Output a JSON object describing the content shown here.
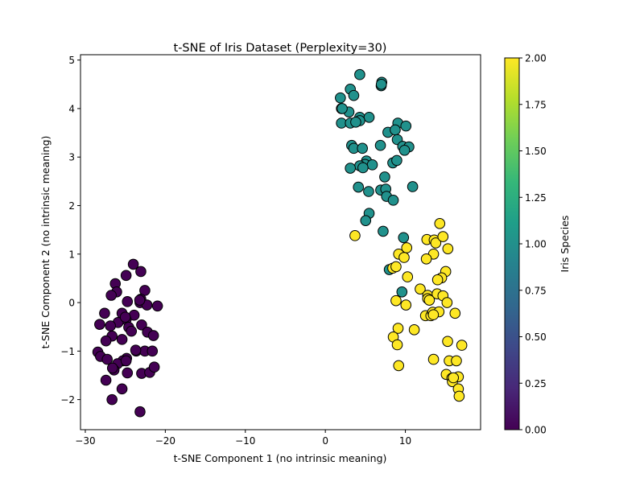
{
  "chart_data": {
    "type": "scatter",
    "title": "t-SNE of Iris Dataset (Perplexity=30)",
    "xlabel": "t-SNE Component 1 (no intrinsic meaning)",
    "ylabel": "t-SNE Component 2 (no intrinsic meaning)",
    "xlim": [
      -30.6,
      19.4
    ],
    "ylim": [
      -2.62,
      5.11
    ],
    "xticks": [
      -30,
      -20,
      -10,
      0,
      10
    ],
    "xtick_labels": [
      "−30",
      "−20",
      "−10",
      "0",
      "10"
    ],
    "yticks": [
      -2,
      -1,
      0,
      1,
      2,
      3,
      4,
      5
    ],
    "ytick_labels": [
      "−2",
      "−1",
      "0",
      "1",
      "2",
      "3",
      "4",
      "5"
    ],
    "grid": false,
    "marker_edge_color": "#000000",
    "colorbar": {
      "label": "Iris Species",
      "colormap": "viridis",
      "range": [
        0,
        2
      ],
      "ticks": [
        0,
        0.25,
        0.5,
        0.75,
        1.0,
        1.25,
        1.5,
        1.75,
        2.0
      ],
      "tick_labels": [
        "0.00",
        "0.25",
        "0.50",
        "0.75",
        "1.00",
        "1.25",
        "1.50",
        "1.75",
        "2.00"
      ],
      "stops": [
        "#440154",
        "#482878",
        "#3e4989",
        "#31688e",
        "#26828e",
        "#1f9e89",
        "#35b779",
        "#6ece58",
        "#b5de2b",
        "#fde725"
      ]
    },
    "series": [
      {
        "value": 0,
        "color": "#440154",
        "points": [
          [
            -24.0,
            0.79
          ],
          [
            -23.06,
            0.64
          ],
          [
            -24.9,
            0.56
          ],
          [
            -26.25,
            0.39
          ],
          [
            -26.08,
            0.22
          ],
          [
            -26.76,
            0.15
          ],
          [
            -22.56,
            0.25
          ],
          [
            -24.74,
            0.02
          ],
          [
            -23.06,
            0.07
          ],
          [
            -23.16,
            0.0
          ],
          [
            -22.29,
            -0.05
          ],
          [
            -20.98,
            -0.07
          ],
          [
            -27.59,
            -0.22
          ],
          [
            -25.41,
            -0.22
          ],
          [
            -23.9,
            -0.26
          ],
          [
            -24.9,
            -0.35
          ],
          [
            -25.91,
            -0.41
          ],
          [
            -28.2,
            -0.45
          ],
          [
            -26.86,
            -0.48
          ],
          [
            -24.57,
            -0.51
          ],
          [
            -22.96,
            -0.46
          ],
          [
            -24.24,
            -0.59
          ],
          [
            -22.23,
            -0.61
          ],
          [
            -21.48,
            -0.68
          ],
          [
            -26.66,
            -0.69
          ],
          [
            -27.42,
            -0.79
          ],
          [
            -25.41,
            -0.76
          ],
          [
            -28.43,
            -1.02
          ],
          [
            -28.1,
            -1.11
          ],
          [
            -27.26,
            -1.17
          ],
          [
            -23.64,
            -1.0
          ],
          [
            -22.56,
            -1.0
          ],
          [
            -21.62,
            -1.0
          ],
          [
            -24.84,
            -1.15
          ],
          [
            -25.31,
            -1.2
          ],
          [
            -25.98,
            -1.26
          ],
          [
            -26.41,
            -1.39
          ],
          [
            -24.74,
            -1.45
          ],
          [
            -22.96,
            -1.46
          ],
          [
            -21.95,
            -1.44
          ],
          [
            -21.38,
            -1.33
          ],
          [
            -27.42,
            -1.6
          ],
          [
            -25.41,
            -1.78
          ],
          [
            -26.66,
            -2.0
          ],
          [
            -23.16,
            -2.25
          ],
          [
            -25.0,
            -0.3
          ],
          [
            -23.2,
            0.05
          ],
          [
            -24.9,
            -1.2
          ],
          [
            -26.6,
            -1.35
          ],
          [
            -23.7,
            -0.98
          ]
        ]
      },
      {
        "value": 1,
        "color": "#21918c",
        "points": [
          [
            4.3,
            4.7
          ],
          [
            7.05,
            4.54
          ],
          [
            6.98,
            4.47
          ],
          [
            3.12,
            4.4
          ],
          [
            3.55,
            4.27
          ],
          [
            1.88,
            4.22
          ],
          [
            2.01,
            4.0
          ],
          [
            2.95,
            3.93
          ],
          [
            4.3,
            3.82
          ],
          [
            5.47,
            3.82
          ],
          [
            2.01,
            3.7
          ],
          [
            3.12,
            3.7
          ],
          [
            4.3,
            3.75
          ],
          [
            3.8,
            3.72
          ],
          [
            9.06,
            3.7
          ],
          [
            10.07,
            3.64
          ],
          [
            7.82,
            3.51
          ],
          [
            8.73,
            3.56
          ],
          [
            8.99,
            3.36
          ],
          [
            3.29,
            3.24
          ],
          [
            3.55,
            3.18
          ],
          [
            4.63,
            3.18
          ],
          [
            6.88,
            3.24
          ],
          [
            9.67,
            3.22
          ],
          [
            10.44,
            3.21
          ],
          [
            9.9,
            3.14
          ],
          [
            5.14,
            2.92
          ],
          [
            4.96,
            2.85
          ],
          [
            4.3,
            2.82
          ],
          [
            3.12,
            2.77
          ],
          [
            5.87,
            2.84
          ],
          [
            4.7,
            2.78
          ],
          [
            8.43,
            2.88
          ],
          [
            8.93,
            2.93
          ],
          [
            7.42,
            2.59
          ],
          [
            4.13,
            2.38
          ],
          [
            5.41,
            2.29
          ],
          [
            6.92,
            2.32
          ],
          [
            7.55,
            2.34
          ],
          [
            7.65,
            2.19
          ],
          [
            8.49,
            2.11
          ],
          [
            10.91,
            2.39
          ],
          [
            5.47,
            1.84
          ],
          [
            5.04,
            1.69
          ],
          [
            7.22,
            1.47
          ],
          [
            9.77,
            1.34
          ],
          [
            7.99,
            0.68
          ],
          [
            9.57,
            0.22
          ],
          [
            2.1,
            4.0
          ],
          [
            7.0,
            4.5
          ]
        ]
      },
      {
        "value": 2,
        "color": "#fde725",
        "points": [
          [
            3.7,
            1.38
          ],
          [
            14.3,
            1.63
          ],
          [
            12.69,
            1.3
          ],
          [
            13.6,
            1.29
          ],
          [
            13.8,
            1.23
          ],
          [
            14.7,
            1.36
          ],
          [
            15.31,
            1.11
          ],
          [
            13.52,
            1.0
          ],
          [
            12.62,
            0.9
          ],
          [
            10.17,
            1.13
          ],
          [
            9.16,
            1.0
          ],
          [
            9.84,
            0.93
          ],
          [
            8.43,
            0.71
          ],
          [
            8.83,
            0.74
          ],
          [
            10.27,
            0.53
          ],
          [
            15.04,
            0.64
          ],
          [
            14.53,
            0.51
          ],
          [
            14.03,
            0.47
          ],
          [
            11.85,
            0.28
          ],
          [
            12.79,
            0.15
          ],
          [
            12.79,
            0.08
          ],
          [
            13.97,
            0.18
          ],
          [
            14.7,
            0.14
          ],
          [
            15.21,
            0.0
          ],
          [
            8.83,
            0.04
          ],
          [
            10.07,
            -0.05
          ],
          [
            12.52,
            -0.27
          ],
          [
            13.19,
            -0.27
          ],
          [
            13.42,
            -0.2
          ],
          [
            14.2,
            -0.19
          ],
          [
            16.21,
            -0.22
          ],
          [
            9.09,
            -0.53
          ],
          [
            11.11,
            -0.56
          ],
          [
            8.49,
            -0.71
          ],
          [
            8.99,
            -0.87
          ],
          [
            15.28,
            -0.8
          ],
          [
            17.05,
            -0.88
          ],
          [
            13.52,
            -1.17
          ],
          [
            15.48,
            -1.2
          ],
          [
            16.38,
            -1.2
          ],
          [
            9.16,
            -1.3
          ],
          [
            15.11,
            -1.48
          ],
          [
            16.62,
            -1.53
          ],
          [
            15.81,
            -1.56
          ],
          [
            15.88,
            -1.63
          ],
          [
            16.62,
            -1.78
          ],
          [
            16.72,
            -1.93
          ],
          [
            13.0,
            0.05
          ],
          [
            13.5,
            -0.25
          ],
          [
            16.0,
            -1.55
          ]
        ]
      }
    ]
  }
}
